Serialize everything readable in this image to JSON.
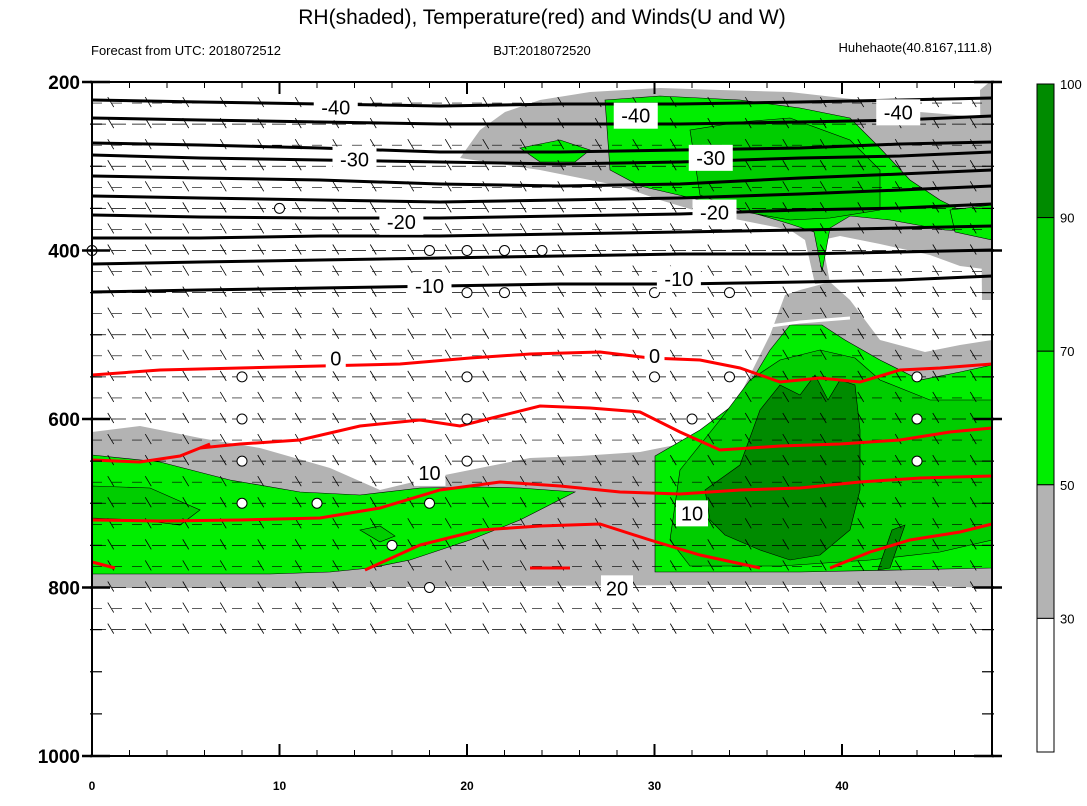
{
  "header": {
    "title": "RH(shaded), Temperature(red) and Winds(U and W)",
    "left": "Forecast from UTC: 2018072512",
    "center": "BJT:2018072520",
    "right": "Huhehaote(40.8167,111.8)"
  },
  "colors": {
    "gray": "#b3b3b3",
    "green1": "#00ee00",
    "green2": "#00cd00",
    "green3": "#008b00",
    "white": "#ffffff",
    "temp_line": "#ff0000",
    "black_line": "#000000",
    "zero_line": "#ffffff"
  },
  "chart_data": {
    "type": "contour",
    "title": "RH(shaded), Temperature(red) and Winds(U and W)",
    "x_ticks": [
      0,
      10,
      20,
      30,
      40
    ],
    "x_range": [
      0,
      48
    ],
    "y_ticks": [
      200,
      400,
      600,
      800,
      1000
    ],
    "y_range": [
      200,
      1000
    ],
    "y_inverted": true,
    "colorbar": {
      "levels": [
        30,
        50,
        70,
        90,
        100
      ],
      "colors": [
        "#ffffff",
        "#b3b3b3",
        "#00ee00",
        "#00cd00",
        "#008b00"
      ]
    },
    "temperature_contour_labels": [
      {
        "text": "-40",
        "x": 13,
        "y": 230
      },
      {
        "text": "-40",
        "x": 29,
        "y": 240
      },
      {
        "text": "-40",
        "x": 43,
        "y": 236
      },
      {
        "text": "-30",
        "x": 14,
        "y": 292
      },
      {
        "text": "-30",
        "x": 33,
        "y": 290
      },
      {
        "text": "-20",
        "x": 16.5,
        "y": 366
      },
      {
        "text": "-20",
        "x": 33.2,
        "y": 355
      },
      {
        "text": "-10",
        "x": 18,
        "y": 442
      },
      {
        "text": "-10",
        "x": 31.3,
        "y": 434
      },
      {
        "text": "0",
        "x": 13,
        "y": 528
      },
      {
        "text": "0",
        "x": 30,
        "y": 525
      },
      {
        "text": "10",
        "x": 18,
        "y": 664
      },
      {
        "text": "10",
        "x": 32,
        "y": 712
      },
      {
        "text": "20",
        "x": 28,
        "y": 801
      }
    ],
    "calm_points": [
      [
        10,
        350
      ],
      [
        0,
        400
      ],
      [
        18,
        400
      ],
      [
        20,
        400
      ],
      [
        22,
        400
      ],
      [
        24,
        400
      ],
      [
        20,
        450
      ],
      [
        22,
        450
      ],
      [
        30,
        450
      ],
      [
        34,
        450
      ],
      [
        8,
        550
      ],
      [
        20,
        550
      ],
      [
        30,
        550
      ],
      [
        34,
        550
      ],
      [
        44,
        550
      ],
      [
        8,
        600
      ],
      [
        20,
        600
      ],
      [
        32,
        600
      ],
      [
        44,
        600
      ],
      [
        8,
        650
      ],
      [
        20,
        650
      ],
      [
        44,
        650
      ],
      [
        8,
        700
      ],
      [
        12,
        700
      ],
      [
        18,
        700
      ],
      [
        16,
        750
      ],
      [
        18,
        800
      ]
    ]
  }
}
